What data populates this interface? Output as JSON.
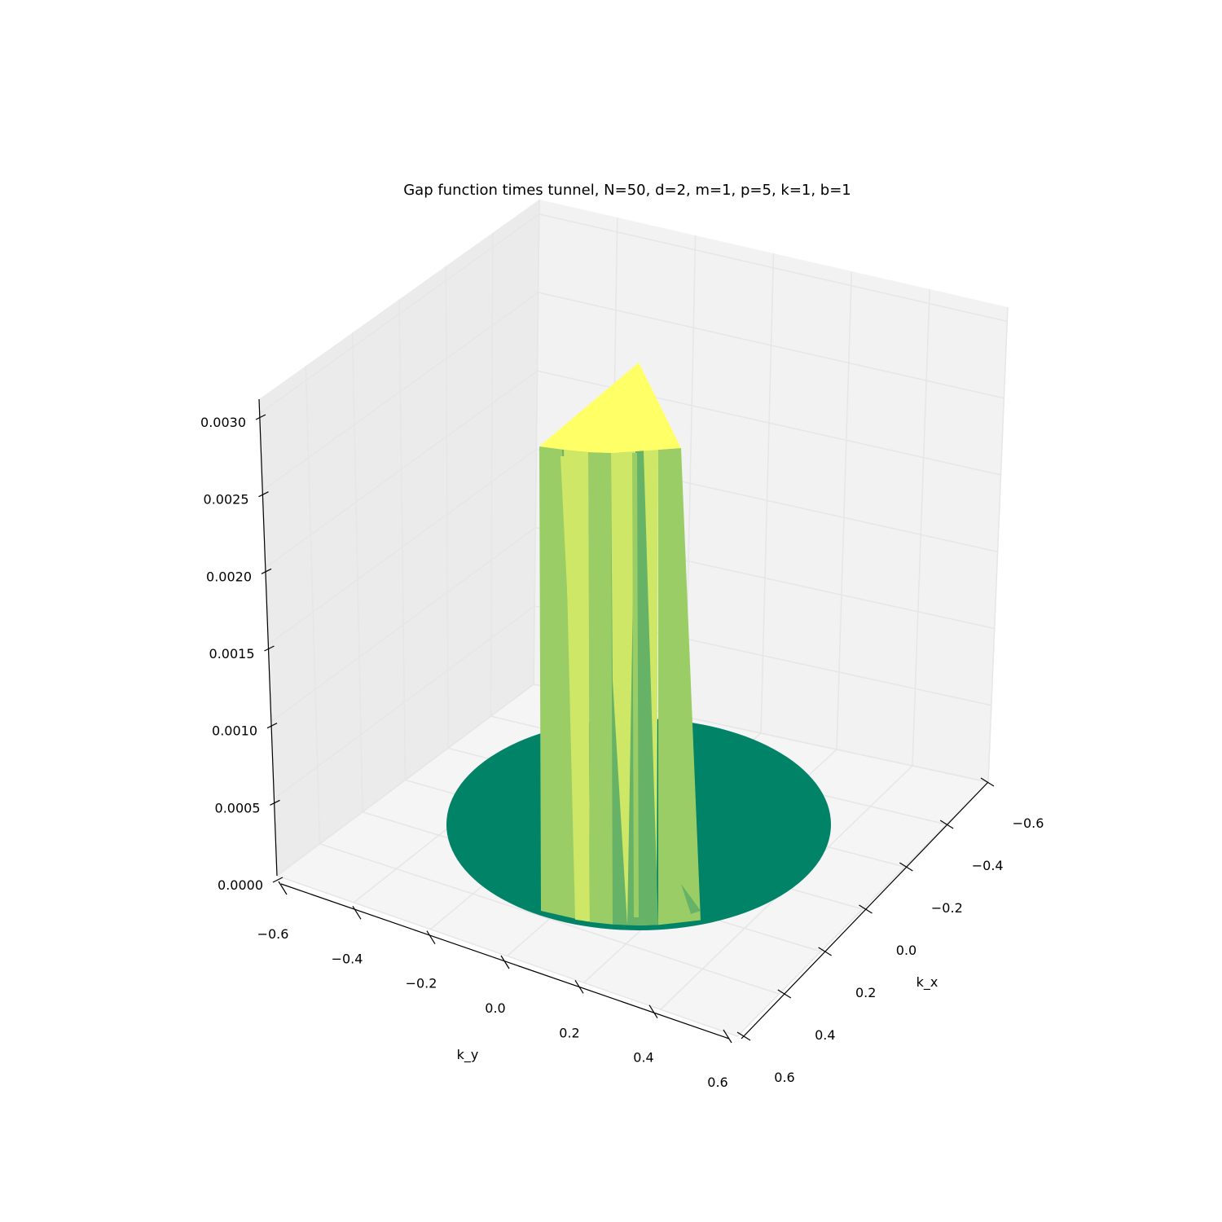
{
  "chart_data": {
    "type": "surface3d",
    "title": "Gap function times tunnel, N=50, d=2, m=1, p=5, k=1, b=1",
    "xlabel": "k_x",
    "ylabel": "k_y",
    "zlabel": "",
    "x_ticks": [
      "−0.6",
      "−0.4",
      "−0.2",
      "0.0",
      "0.2",
      "0.4",
      "0.6"
    ],
    "y_ticks": [
      "−0.6",
      "−0.4",
      "−0.2",
      "0.0",
      "0.2",
      "0.4",
      "0.6"
    ],
    "z_ticks": [
      "0.0000",
      "0.0005",
      "0.0010",
      "0.0015",
      "0.0020",
      "0.0025",
      "0.0030"
    ],
    "xlim": [
      -0.6,
      0.6
    ],
    "ylim": [
      -0.6,
      0.6
    ],
    "zlim": [
      0,
      0.003
    ],
    "grid": true,
    "colormap": "summer",
    "surface": {
      "disk_radius": 0.5,
      "disk_value": 0.0,
      "column_radius": 0.09,
      "column_value": 0.0028,
      "peak_value": 0.0031
    },
    "colors": {
      "disk": "#008366",
      "column_light": "#cfe766",
      "column_mid": "#9bcd66",
      "column_dark": "#66b266",
      "cap": "#ffff66",
      "pane_back": "#f2f2f2",
      "pane_left": "#ebebeb",
      "pane_floor": "#f5f5f5",
      "grid": "#e6e6e6"
    }
  }
}
